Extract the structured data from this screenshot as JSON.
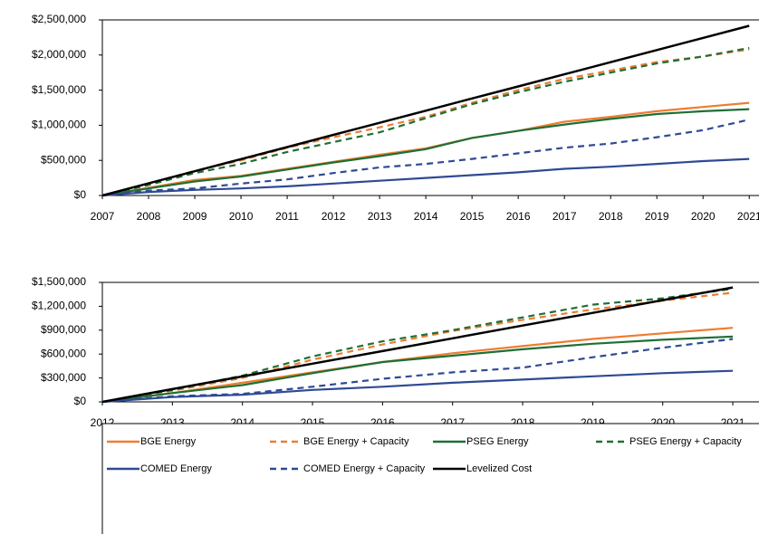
{
  "chart_data": [
    {
      "type": "line",
      "x": [
        2007,
        2008,
        2009,
        2010,
        2011,
        2012,
        2013,
        2014,
        2015,
        2016,
        2017,
        2018,
        2019,
        2020,
        2021
      ],
      "xlim": [
        2007,
        2021.25
      ],
      "xticks": [
        2007,
        2008,
        2009,
        2010,
        2011,
        2012,
        2013,
        2014,
        2015,
        2016,
        2017,
        2018,
        2019,
        2020,
        2021
      ],
      "ylim": [
        0,
        2500000
      ],
      "yticks": [
        {
          "value": 0,
          "label": "$0"
        },
        {
          "value": 500000,
          "label": "$500,000"
        },
        {
          "value": 1000000,
          "label": "$1,000,000"
        },
        {
          "value": 1500000,
          "label": "$1,500,000"
        },
        {
          "value": 2000000,
          "label": "$2,000,000"
        },
        {
          "value": 2500000,
          "label": "$2,500,000"
        }
      ],
      "grid": false,
      "legend": "bottom",
      "series": [
        {
          "name": "BGE Energy",
          "color": "#ed7d31",
          "style": "solid",
          "values": [
            0,
            110000,
            220000,
            280000,
            380000,
            480000,
            580000,
            670000,
            820000,
            920000,
            1050000,
            1120000,
            1200000,
            1260000,
            1320000
          ]
        },
        {
          "name": "BGE Energy + Capacity",
          "color": "#ed7d31",
          "style": "dashed",
          "values": [
            0,
            170000,
            350000,
            500000,
            680000,
            830000,
            970000,
            1120000,
            1320000,
            1500000,
            1660000,
            1780000,
            1900000,
            1980000,
            2080000
          ]
        },
        {
          "name": "PSEG Energy",
          "color": "#1f6f35",
          "style": "solid",
          "values": [
            0,
            100000,
            200000,
            270000,
            370000,
            470000,
            560000,
            660000,
            820000,
            920000,
            1010000,
            1090000,
            1160000,
            1200000,
            1230000
          ]
        },
        {
          "name": "PSEG Energy + Capacity",
          "color": "#1f6f35",
          "style": "dashed",
          "values": [
            0,
            150000,
            320000,
            450000,
            620000,
            760000,
            900000,
            1100000,
            1300000,
            1470000,
            1620000,
            1750000,
            1880000,
            1980000,
            2100000
          ]
        },
        {
          "name": "COMED Energy",
          "color": "#2e4a94",
          "style": "solid",
          "values": [
            0,
            50000,
            80000,
            100000,
            130000,
            170000,
            210000,
            250000,
            290000,
            330000,
            380000,
            410000,
            450000,
            490000,
            520000
          ]
        },
        {
          "name": "COMED Energy + Capacity",
          "color": "#2e4a94",
          "style": "dashed",
          "values": [
            0,
            70000,
            100000,
            170000,
            230000,
            320000,
            400000,
            450000,
            520000,
            600000,
            680000,
            740000,
            830000,
            930000,
            1080000
          ]
        },
        {
          "name": "Levelized Cost",
          "color": "#000000",
          "style": "solid",
          "values": [
            0,
            173000,
            345000,
            518000,
            690000,
            863000,
            1035000,
            1208000,
            1381000,
            1553000,
            1726000,
            1898000,
            2071000,
            2243000,
            2416000
          ]
        }
      ]
    },
    {
      "type": "line",
      "x": [
        2012,
        2013,
        2014,
        2015,
        2016,
        2017,
        2018,
        2019,
        2020,
        2021
      ],
      "xlim": [
        2012,
        2021.4
      ],
      "xticks": [
        2012,
        2013,
        2014,
        2015,
        2016,
        2017,
        2018,
        2019,
        2020,
        2021
      ],
      "ylim": [
        0,
        1500000
      ],
      "yticks": [
        {
          "value": 0,
          "label": "$0"
        },
        {
          "value": 300000,
          "label": "$300,000"
        },
        {
          "value": 600000,
          "label": "$600,000"
        },
        {
          "value": 900000,
          "label": "$900,000"
        },
        {
          "value": 1200000,
          "label": "$1,200,000"
        },
        {
          "value": 1500000,
          "label": "$1,500,000"
        }
      ],
      "grid": false,
      "series": [
        {
          "name": "BGE Energy",
          "color": "#ed7d31",
          "style": "solid",
          "values": [
            0,
            110000,
            240000,
            370000,
            500000,
            610000,
            700000,
            790000,
            860000,
            930000
          ]
        },
        {
          "name": "BGE Energy + Capacity",
          "color": "#ed7d31",
          "style": "dashed",
          "values": [
            0,
            140000,
            300000,
            530000,
            720000,
            890000,
            1030000,
            1160000,
            1270000,
            1370000
          ]
        },
        {
          "name": "PSEG Energy",
          "color": "#1f6f35",
          "style": "solid",
          "values": [
            0,
            110000,
            210000,
            360000,
            500000,
            580000,
            660000,
            730000,
            780000,
            820000
          ]
        },
        {
          "name": "PSEG Energy + Capacity",
          "color": "#1f6f35",
          "style": "dashed",
          "values": [
            0,
            150000,
            330000,
            570000,
            760000,
            900000,
            1060000,
            1220000,
            1300000,
            1420000
          ]
        },
        {
          "name": "COMED Energy",
          "color": "#2e4a94",
          "style": "solid",
          "values": [
            0,
            60000,
            90000,
            150000,
            190000,
            240000,
            280000,
            320000,
            360000,
            390000
          ]
        },
        {
          "name": "COMED Energy + Capacity",
          "color": "#2e4a94",
          "style": "dashed",
          "values": [
            0,
            70000,
            100000,
            190000,
            290000,
            370000,
            430000,
            560000,
            680000,
            790000
          ]
        },
        {
          "name": "Levelized Cost",
          "color": "#000000",
          "style": "solid",
          "values": [
            0,
            160000,
            319000,
            479000,
            638000,
            798000,
            958000,
            1117000,
            1277000,
            1436000
          ]
        }
      ]
    }
  ]
}
